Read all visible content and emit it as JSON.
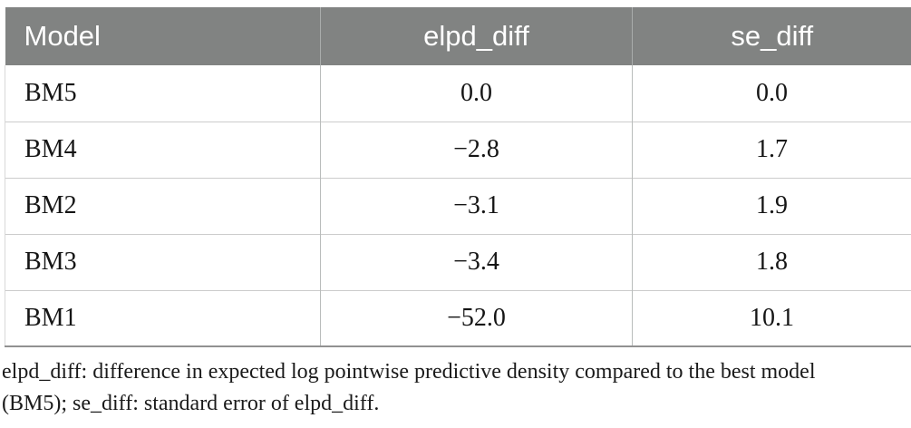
{
  "table": {
    "columns": [
      "Model",
      "elpd_diff",
      "se_diff"
    ],
    "rows": [
      {
        "model": "BM5",
        "elpd_diff": "0.0",
        "se_diff": "0.0"
      },
      {
        "model": "BM4",
        "elpd_diff": "−2.8",
        "se_diff": "1.7"
      },
      {
        "model": "BM2",
        "elpd_diff": "−3.1",
        "se_diff": "1.9"
      },
      {
        "model": "BM3",
        "elpd_diff": "−3.4",
        "se_diff": "1.8"
      },
      {
        "model": "BM1",
        "elpd_diff": "−52.0",
        "se_diff": "10.1"
      }
    ]
  },
  "footnote": {
    "lines": [
      "elpd_diff: difference in expected log pointwise predictive density compared to the best model",
      "(BM5); se_diff: standard error of elpd_diff."
    ],
    "full_text": "elpd_diff: difference in expected log pointwise predictive density compared to the best model (BM5); se_diff: standard error of elpd_diff."
  },
  "colors": {
    "header_bg": "#818382",
    "header_text": "#ffffff",
    "body_text": "#151515",
    "row_divider": "#cccccc",
    "column_divider": "#b9bcbb",
    "table_bottom_border": "#919191"
  },
  "chart_data": {
    "type": "table",
    "title": "",
    "columns": [
      "Model",
      "elpd_diff",
      "se_diff"
    ],
    "rows": [
      [
        "BM5",
        0.0,
        0.0
      ],
      [
        "BM4",
        -2.8,
        1.7
      ],
      [
        "BM2",
        -3.1,
        1.9
      ],
      [
        "BM3",
        -3.4,
        1.8
      ],
      [
        "BM1",
        -52.0,
        10.1
      ]
    ]
  }
}
